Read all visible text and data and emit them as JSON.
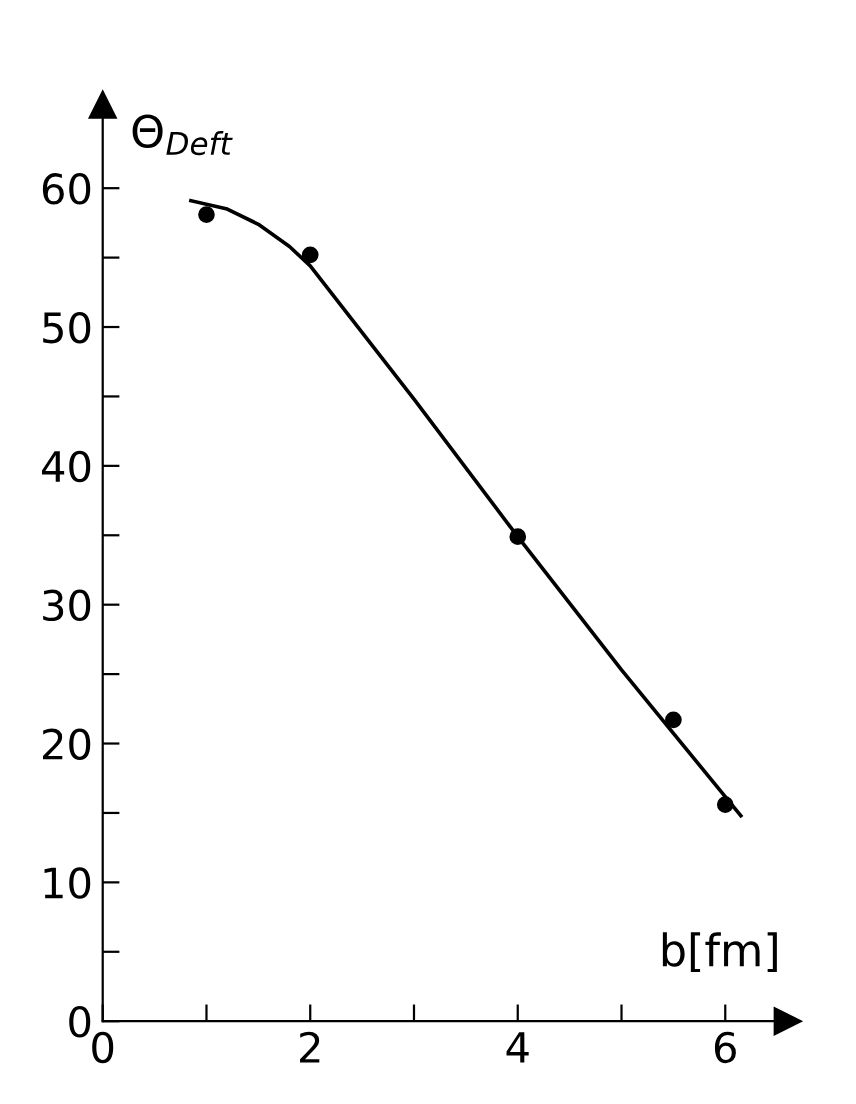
{
  "chart_data": {
    "type": "scatter",
    "ylabel": "Θ$_{Deft}$",
    "xlabel": "b[fm]",
    "series": [
      {
        "color": "#000000",
        "marker": "circle",
        "x": [
          1.0,
          2.0,
          4.0,
          5.5,
          6.0
        ],
        "values": [
          58.1,
          55.2,
          34.9,
          21.7,
          15.6
        ]
      },
      {
        "type": "line",
        "color": "#000000",
        "marker": "none",
        "line_style": "solid",
        "x": [
          0.85,
          1.2,
          1.5,
          1.8,
          2.0,
          3.0,
          4.0,
          5.0,
          6.15
        ],
        "values": [
          59.1,
          58.5,
          57.4,
          55.8,
          54.4,
          44.8,
          34.9,
          25.3,
          14.8
        ]
      }
    ],
    "xlim": [
      0,
      6.6
    ],
    "ylim": [
      0,
      66
    ],
    "xticks": [
      0,
      {
        "value": 1,
        "label": null
      },
      2,
      {
        "value": 3,
        "label": null
      },
      4,
      {
        "value": 5,
        "label": null
      },
      6
    ],
    "yticks": [
      0,
      {
        "value": 5,
        "label": null
      },
      10,
      {
        "value": 15,
        "label": null
      },
      20,
      {
        "value": 25,
        "label": null
      },
      30,
      {
        "value": 35,
        "label": null
      },
      40,
      {
        "value": 45,
        "label": null
      },
      50,
      {
        "value": 55,
        "label": null
      },
      60
    ],
    "grid": false,
    "legend": false
  }
}
